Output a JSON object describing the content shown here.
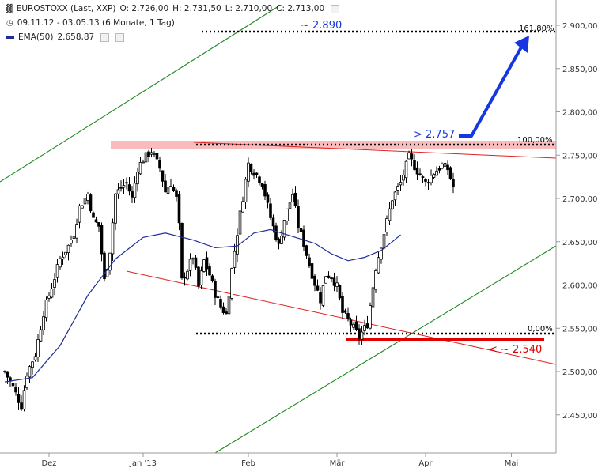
{
  "header": {
    "symbol": "EUROSTOXX (Last, XXP)",
    "open": "O: 2.726,00",
    "high": "H: 2.731,50",
    "low": "L: 2.710,00",
    "close": "C: 2.713,00",
    "range": "09.11.12 - 03.05.13 (6 Monate, 1 Tag)",
    "ema_label": "EMA(50)",
    "ema_value": "2.658,87",
    "icons": [
      "candlestick-icon",
      "clock-icon",
      "gear-icon",
      "close-icon"
    ]
  },
  "colors": {
    "candle": "#000000",
    "ema": "#1e2d9a",
    "trend_green": "#1f8a1f",
    "trend_red": "#e02020",
    "resistance_band": "#f7b5b5",
    "support_bar": "#e00000",
    "projection_arrow": "#1536e0",
    "annotation_blue": "#1536e0",
    "annotation_red": "#e00000"
  },
  "annotations": {
    "target": "~ 2.890",
    "fib_161": "161,80%",
    "breakout": "> 2.757",
    "fib_100": "100,00%",
    "fib_0": "0,00%",
    "support": "< ~ 2.540"
  },
  "chart_data": {
    "type": "line",
    "title": "",
    "ylim": [
      2420,
      2920
    ],
    "yticks": [
      "2.900,00",
      "2.850,00",
      "2.800,00",
      "2.750,00",
      "2.700,00",
      "2.650,00",
      "2.600,00",
      "2.550,00",
      "2.500,00",
      "2.450,00"
    ],
    "ytick_values": [
      2900,
      2850,
      2800,
      2750,
      2700,
      2650,
      2600,
      2550,
      2500,
      2450
    ],
    "xticks": [
      "Dez",
      "Jan '13",
      "Feb",
      "Mär",
      "Apr",
      "Mai"
    ],
    "xtick_days": [
      16,
      50,
      88,
      120,
      152,
      183
    ],
    "series": [
      {
        "kind": "ohlc",
        "close_path": [
          [
            0,
            2500
          ],
          [
            3,
            2482
          ],
          [
            6,
            2460
          ],
          [
            8,
            2498
          ],
          [
            11,
            2520
          ],
          [
            14,
            2568
          ],
          [
            17,
            2598
          ],
          [
            20,
            2630
          ],
          [
            23,
            2645
          ],
          [
            25,
            2660
          ],
          [
            27,
            2690
          ],
          [
            30,
            2705
          ],
          [
            32,
            2675
          ],
          [
            34,
            2668
          ],
          [
            36,
            2605
          ],
          [
            38,
            2640
          ],
          [
            40,
            2705
          ],
          [
            42,
            2712
          ],
          [
            44,
            2718
          ],
          [
            46,
            2700
          ],
          [
            48,
            2735
          ],
          [
            50,
            2745
          ],
          [
            53,
            2755
          ],
          [
            56,
            2735
          ],
          [
            58,
            2708
          ],
          [
            60,
            2718
          ],
          [
            62,
            2700
          ],
          [
            63,
            2668
          ],
          [
            64,
            2605
          ],
          [
            66,
            2618
          ],
          [
            68,
            2633
          ],
          [
            70,
            2598
          ],
          [
            72,
            2628
          ],
          [
            74,
            2612
          ],
          [
            76,
            2590
          ],
          [
            78,
            2575
          ],
          [
            80,
            2566
          ],
          [
            82,
            2618
          ],
          [
            85,
            2682
          ],
          [
            88,
            2740
          ],
          [
            90,
            2731
          ],
          [
            93,
            2718
          ],
          [
            96,
            2678
          ],
          [
            99,
            2645
          ],
          [
            101,
            2676
          ],
          [
            104,
            2705
          ],
          [
            106,
            2668
          ],
          [
            108,
            2648
          ],
          [
            110,
            2623
          ],
          [
            112,
            2602
          ],
          [
            114,
            2583
          ],
          [
            116,
            2612
          ],
          [
            118,
            2610
          ],
          [
            120,
            2598
          ],
          [
            122,
            2568
          ],
          [
            125,
            2555
          ],
          [
            128,
            2540
          ],
          [
            131,
            2555
          ],
          [
            134,
            2620
          ],
          [
            137,
            2660
          ],
          [
            140,
            2700
          ],
          [
            143,
            2718
          ],
          [
            146,
            2748
          ],
          [
            149,
            2732
          ],
          [
            152,
            2718
          ],
          [
            155,
            2730
          ],
          [
            158,
            2738
          ],
          [
            160,
            2734
          ],
          [
            162,
            2713
          ]
        ],
        "note": "approximate daily closes estimated from candle positions; x = trading-day index"
      },
      {
        "kind": "ema",
        "points": [
          [
            0,
            2488
          ],
          [
            10,
            2493
          ],
          [
            20,
            2530
          ],
          [
            30,
            2588
          ],
          [
            40,
            2630
          ],
          [
            50,
            2655
          ],
          [
            58,
            2660
          ],
          [
            68,
            2652
          ],
          [
            76,
            2643
          ],
          [
            84,
            2645
          ],
          [
            90,
            2660
          ],
          [
            96,
            2664
          ],
          [
            104,
            2656
          ],
          [
            112,
            2648
          ],
          [
            118,
            2636
          ],
          [
            124,
            2628
          ],
          [
            130,
            2632
          ],
          [
            136,
            2640
          ],
          [
            140,
            2650
          ],
          [
            143,
            2658
          ]
        ]
      }
    ],
    "levels": [
      {
        "value": 2890,
        "label": "161,80%"
      },
      {
        "value": 2757,
        "label": "100,00%"
      },
      {
        "value": 2540,
        "label": "0,00%"
      }
    ]
  }
}
